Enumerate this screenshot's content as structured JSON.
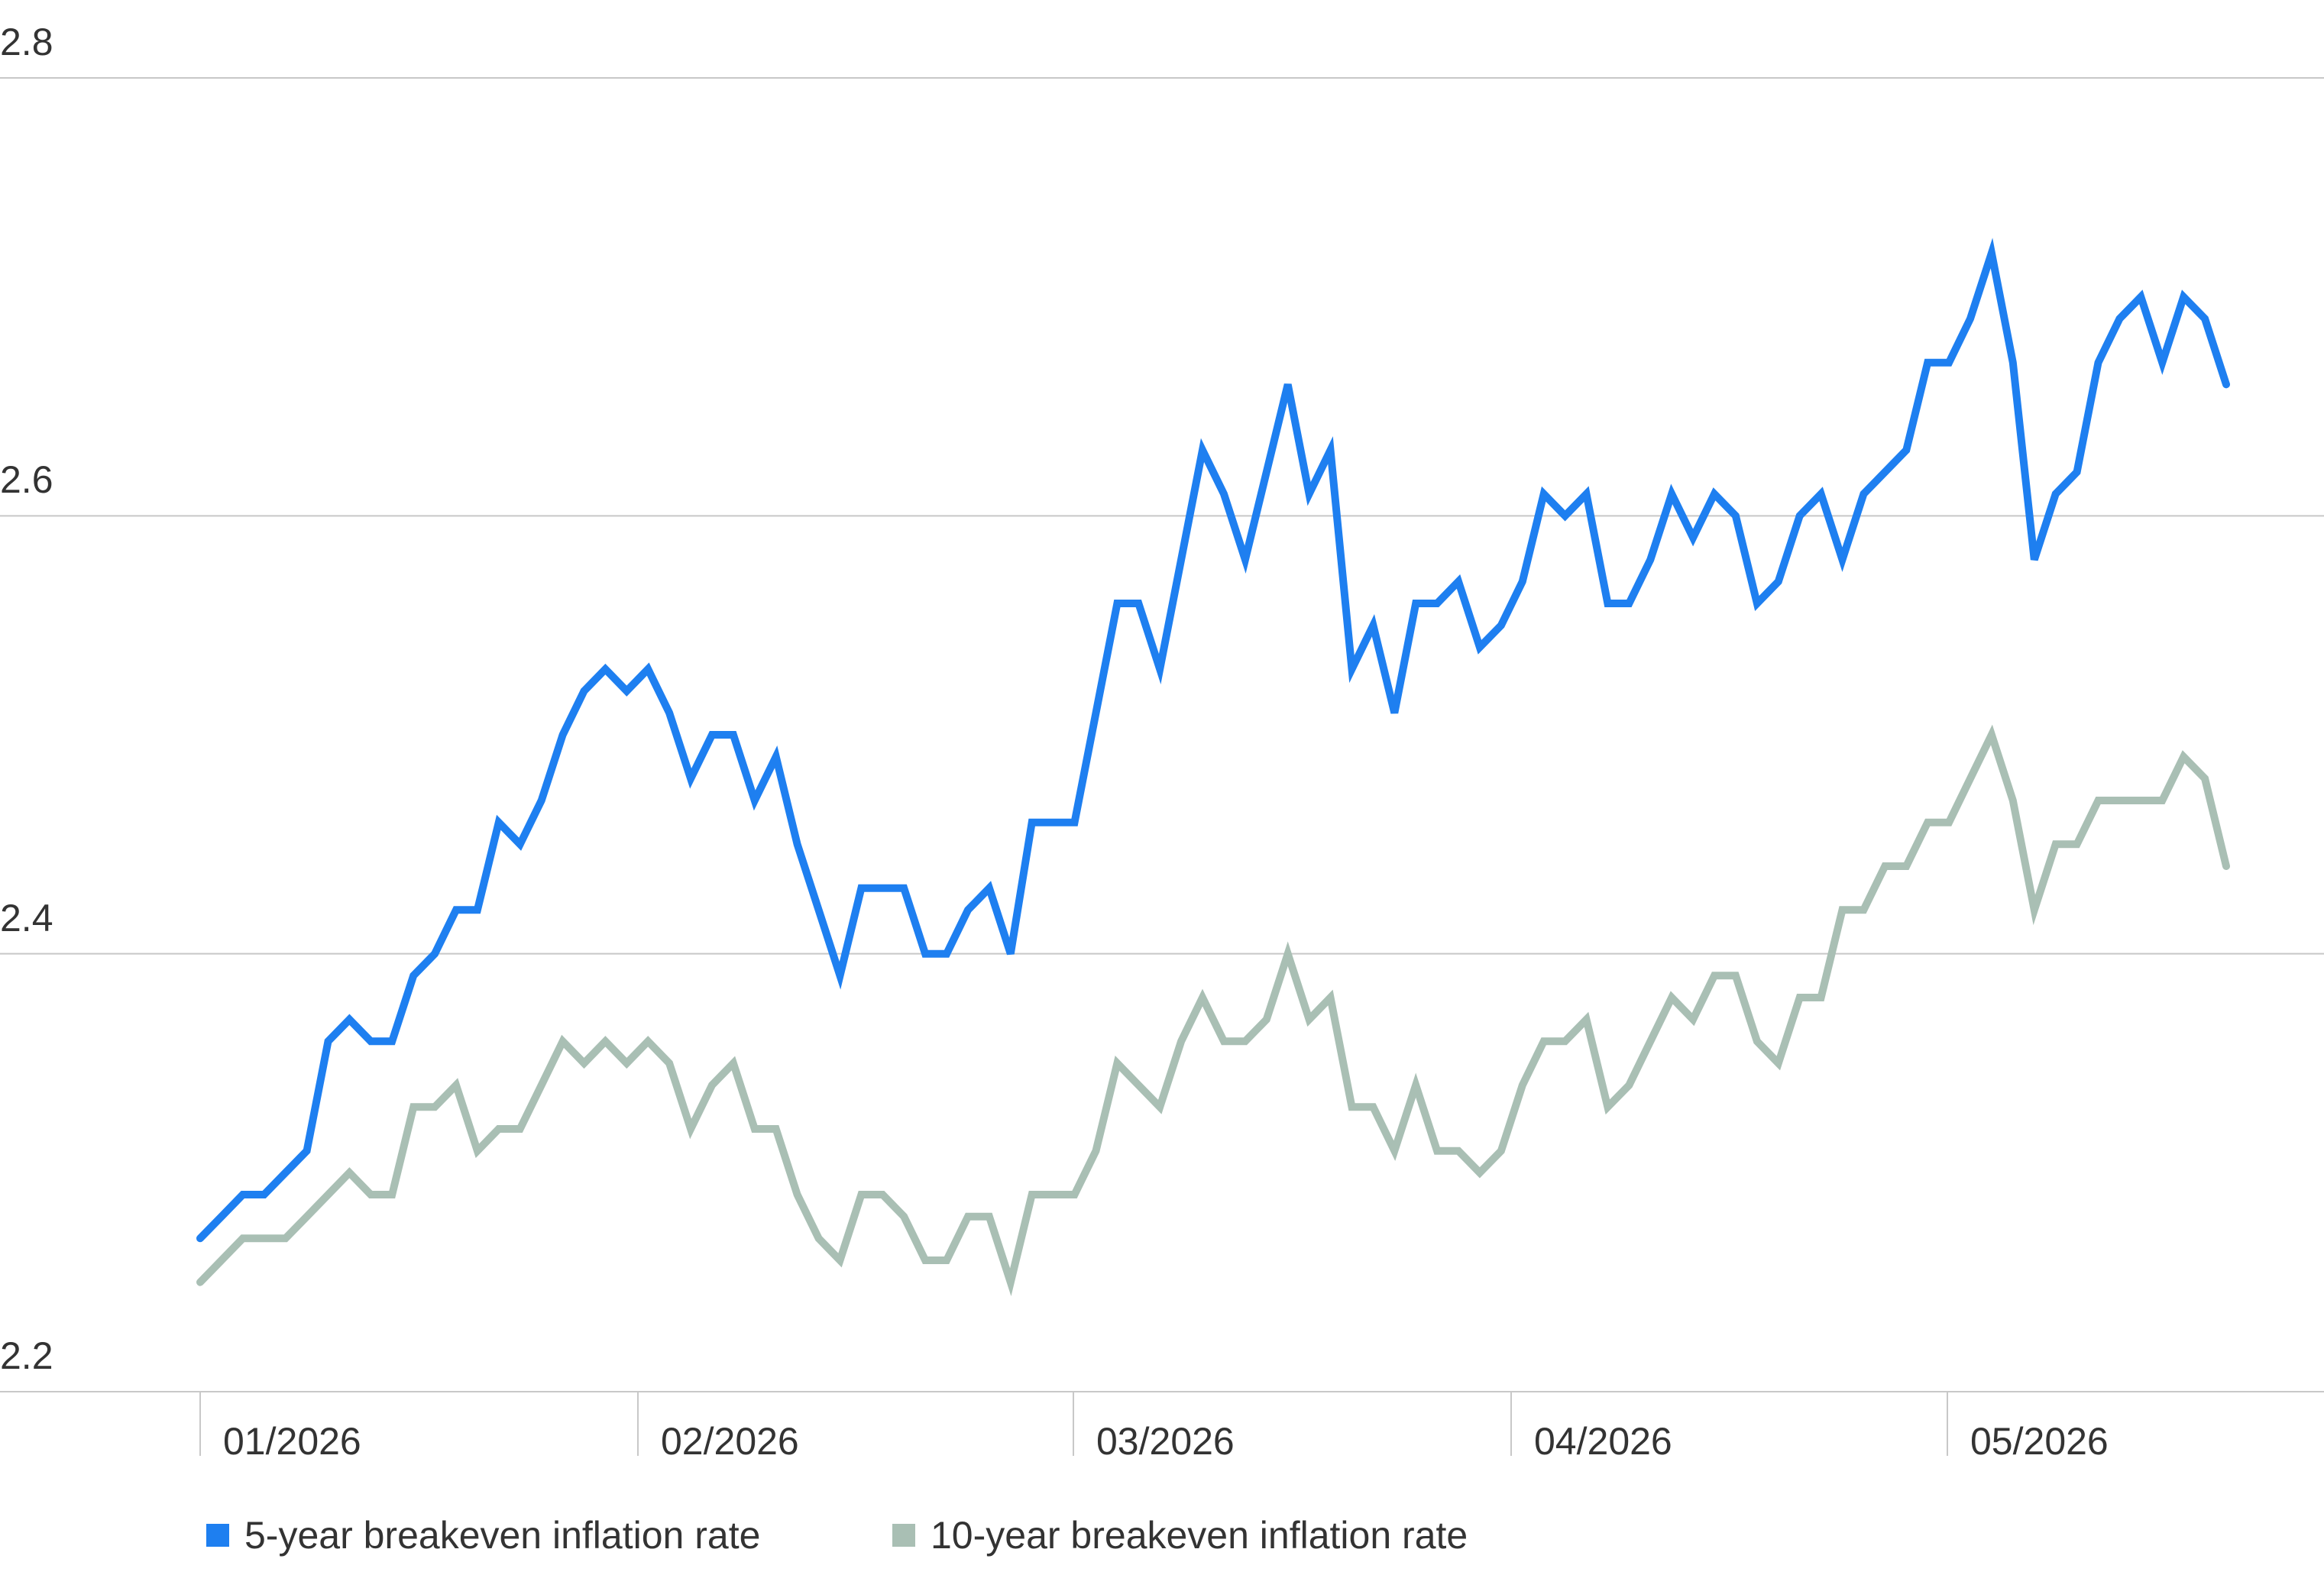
{
  "chart_data": {
    "type": "line",
    "title": "",
    "xlabel": "",
    "ylabel": "",
    "ylim": [
      2.2,
      2.8
    ],
    "yticks": [
      "2.8",
      "2.6",
      "2.4",
      "2.2"
    ],
    "xticks": [
      "01/2026",
      "02/2026",
      "03/2026",
      "04/2026",
      "05/2026"
    ],
    "grid": "horizontal",
    "legend_position": "bottom-left",
    "series": [
      {
        "name": "5-year breakeven inflation rate",
        "color": "#1e7ff0",
        "values": [
          2.27,
          2.28,
          2.29,
          2.29,
          2.3,
          2.31,
          2.36,
          2.37,
          2.36,
          2.36,
          2.39,
          2.4,
          2.42,
          2.42,
          2.46,
          2.45,
          2.47,
          2.5,
          2.52,
          2.53,
          2.52,
          2.53,
          2.51,
          2.48,
          2.5,
          2.5,
          2.47,
          2.49,
          2.45,
          2.42,
          2.39,
          2.43,
          2.43,
          2.43,
          2.4,
          2.4,
          2.42,
          2.43,
          2.4,
          2.46,
          2.46,
          2.46,
          2.51,
          2.56,
          2.56,
          2.53,
          2.58,
          2.63,
          2.61,
          2.58,
          2.62,
          2.66,
          2.61,
          2.63,
          2.53,
          2.55,
          2.51,
          2.56,
          2.56,
          2.57,
          2.54,
          2.55,
          2.57,
          2.61,
          2.6,
          2.61,
          2.56,
          2.56,
          2.58,
          2.61,
          2.59,
          2.61,
          2.6,
          2.56,
          2.57,
          2.6,
          2.61,
          2.58,
          2.61,
          2.62,
          2.63,
          2.67,
          2.67,
          2.69,
          2.72,
          2.67,
          2.58,
          2.61,
          2.62,
          2.67,
          2.69,
          2.7,
          2.67,
          2.7,
          2.69,
          2.66
        ]
      },
      {
        "name": "10-year breakeven inflation rate",
        "color": "#a9bfb4",
        "values": [
          2.25,
          2.26,
          2.27,
          2.27,
          2.27,
          2.28,
          2.29,
          2.3,
          2.29,
          2.29,
          2.33,
          2.33,
          2.34,
          2.31,
          2.32,
          2.32,
          2.34,
          2.36,
          2.35,
          2.36,
          2.35,
          2.36,
          2.35,
          2.32,
          2.34,
          2.35,
          2.32,
          2.32,
          2.29,
          2.27,
          2.26,
          2.29,
          2.29,
          2.28,
          2.26,
          2.26,
          2.28,
          2.28,
          2.25,
          2.29,
          2.29,
          2.29,
          2.31,
          2.35,
          2.34,
          2.33,
          2.36,
          2.38,
          2.36,
          2.36,
          2.37,
          2.4,
          2.37,
          2.38,
          2.33,
          2.33,
          2.31,
          2.34,
          2.31,
          2.31,
          2.3,
          2.31,
          2.34,
          2.36,
          2.36,
          2.37,
          2.33,
          2.34,
          2.36,
          2.38,
          2.37,
          2.39,
          2.39,
          2.36,
          2.35,
          2.38,
          2.38,
          2.42,
          2.42,
          2.44,
          2.44,
          2.46,
          2.46,
          2.48,
          2.5,
          2.47,
          2.42,
          2.45,
          2.45,
          2.47,
          2.47,
          2.47,
          2.47,
          2.49,
          2.48,
          2.44
        ]
      }
    ]
  }
}
